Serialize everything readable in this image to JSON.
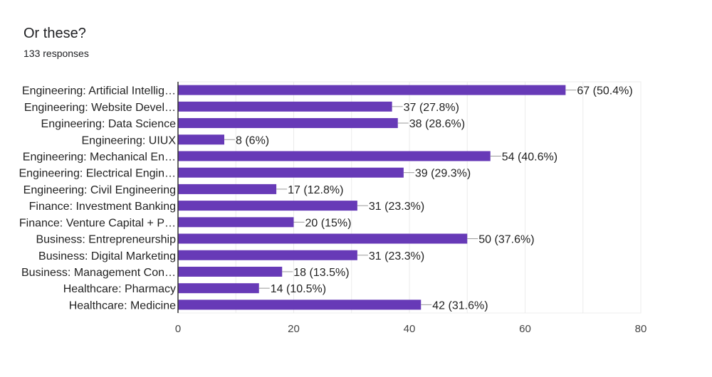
{
  "header": {
    "title": "Or these?",
    "responses": "133 responses"
  },
  "chart_data": {
    "type": "bar",
    "orientation": "horizontal",
    "categories": [
      "Engineering: Artificial Intellig…",
      "Engineering: Website Devel…",
      "Engineering: Data Science",
      "Engineering: UIUX",
      "Engineering: Mechanical En…",
      "Engineering: Electrical Engin…",
      "Engineering: Civil Engineering",
      "Finance: Investment Banking",
      "Finance: Venture Capital + P…",
      "Business: Entrepreneurship",
      "Business: Digital Marketing",
      "Business: Management Con…",
      "Healthcare: Pharmacy",
      "Healthcare: Medicine"
    ],
    "values": [
      67,
      37,
      38,
      8,
      54,
      39,
      17,
      31,
      20,
      50,
      31,
      18,
      14,
      42
    ],
    "data_labels": [
      "67 (50.4%)",
      "37 (27.8%)",
      "38 (28.6%)",
      "8 (6%)",
      "54 (40.6%)",
      "39 (29.3%)",
      "17 (12.8%)",
      "31 (23.3%)",
      "20 (15%)",
      "50 (37.6%)",
      "31 (23.3%)",
      "18 (13.5%)",
      "14 (10.5%)",
      "42 (31.6%)"
    ],
    "xlim": [
      0,
      80
    ],
    "xticks": [
      "0",
      "20",
      "40",
      "60",
      "80"
    ],
    "grid": true,
    "bar_color": "#673ab7"
  }
}
